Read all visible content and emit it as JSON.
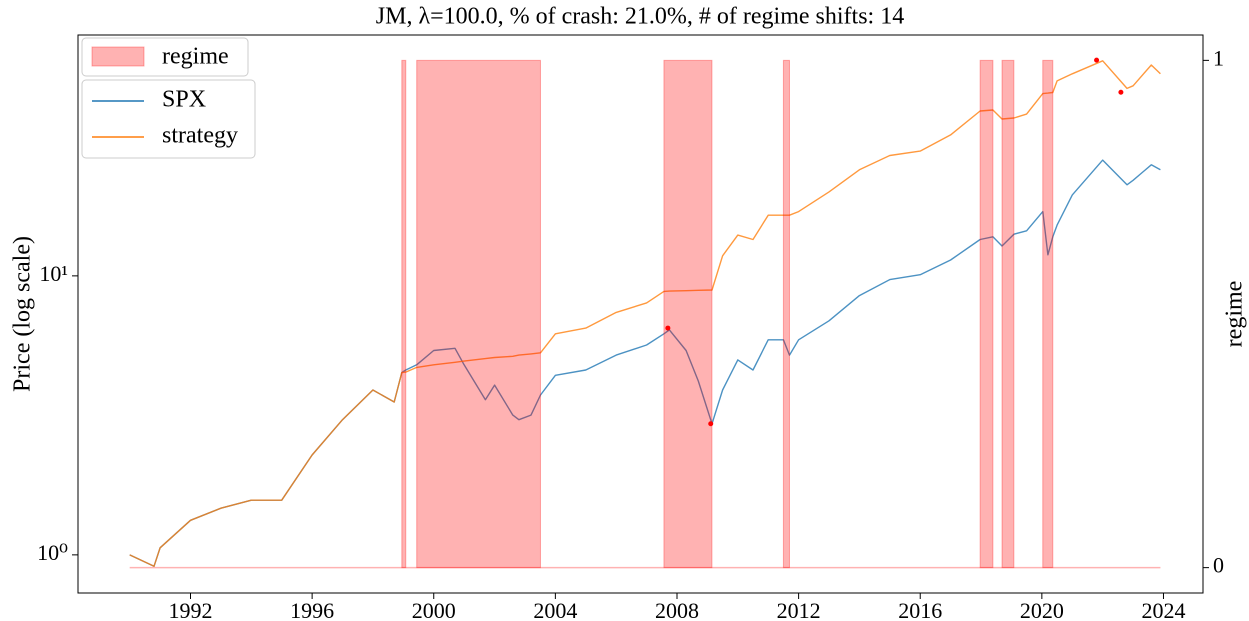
{
  "chart_data": {
    "type": "line",
    "title": "JM, λ=100.0, % of crash: 21.0%, # of regime shifts: 14",
    "ylabel": "Price (log scale)",
    "y2label": "regime",
    "log_y": true,
    "xlim": [
      1988.3,
      2025.3
    ],
    "xticks": [
      1992,
      1996,
      2000,
      2004,
      2008,
      2012,
      2016,
      2020,
      2024
    ],
    "ylim": [
      0.73,
      73
    ],
    "yticks": [
      {
        "value": 1,
        "label": "10⁰"
      },
      {
        "value": 10,
        "label": "10¹"
      }
    ],
    "y2lim": [
      -0.05,
      1.05
    ],
    "y2ticks": [
      0,
      1
    ],
    "x": [
      1990.0,
      1990.8,
      1991.0,
      1992,
      1993,
      1994,
      1995,
      1996,
      1997,
      1998,
      1998.7,
      1998.95,
      1999.08,
      1999.44,
      2000,
      2000.7,
      2001.0,
      2001.7,
      2002.0,
      2002.6,
      2002.8,
      2003.2,
      2003.51,
      2004,
      2005,
      2006,
      2007,
      2007.57,
      2007.75,
      2008.3,
      2008.7,
      2009.15,
      2009.5,
      2010,
      2010.5,
      2011,
      2011.5,
      2011.7,
      2012,
      2013,
      2014,
      2015,
      2016,
      2017,
      2017.97,
      2018.39,
      2018.69,
      2019.08,
      2019.5,
      2020.03,
      2020.2,
      2020.36,
      2020.5,
      2021,
      2022.0,
      2022.8,
      2023,
      2023.6,
      2023.9
    ],
    "series": [
      {
        "name": "SPX",
        "color": "#1f77b4",
        "values": [
          1.0,
          0.91,
          1.06,
          1.33,
          1.47,
          1.57,
          1.57,
          2.28,
          3.05,
          3.9,
          3.53,
          4.5,
          4.6,
          4.8,
          5.4,
          5.5,
          4.8,
          3.6,
          4.06,
          3.17,
          3.05,
          3.17,
          3.74,
          4.4,
          4.6,
          5.2,
          5.65,
          6.2,
          6.4,
          5.4,
          4.2,
          2.95,
          3.9,
          5.0,
          4.6,
          5.9,
          5.9,
          5.2,
          5.9,
          6.9,
          8.5,
          9.7,
          10.1,
          11.4,
          13.5,
          13.8,
          12.8,
          14.1,
          14.5,
          17.0,
          11.9,
          13.8,
          15.2,
          19.5,
          26,
          21.2,
          22.0,
          25,
          24
        ]
      },
      {
        "name": "strategy",
        "color": "#ff7f0e",
        "values": [
          1.0,
          0.91,
          1.06,
          1.33,
          1.47,
          1.57,
          1.57,
          2.28,
          3.05,
          3.9,
          3.53,
          4.5,
          4.52,
          4.7,
          4.8,
          4.9,
          4.95,
          5.05,
          5.1,
          5.15,
          5.2,
          5.25,
          5.3,
          6.2,
          6.5,
          7.4,
          8.0,
          8.8,
          8.82,
          8.85,
          8.88,
          8.9,
          11.8,
          14,
          13.5,
          16.5,
          16.5,
          16.5,
          17,
          20,
          24,
          27,
          28,
          32,
          39,
          39.3,
          36.5,
          36.8,
          38,
          45,
          45.2,
          45.4,
          50,
          53,
          59,
          47,
          48,
          57,
          53
        ]
      }
    ],
    "regime": {
      "name": "regime",
      "color": "#ff0000",
      "alpha": 0.3,
      "axis": "y2",
      "x": [
        1990.0,
        1998.95,
        1999.08,
        1999.44,
        2003.51,
        2007.57,
        2009.15,
        2011.5,
        2011.7,
        2017.97,
        2018.39,
        2018.69,
        2019.08,
        2020.03,
        2020.36,
        2023.9
      ],
      "values": [
        0,
        1,
        0,
        1,
        0,
        1,
        0,
        1,
        0,
        1,
        0,
        1,
        0,
        1,
        0,
        0
      ]
    },
    "markers": {
      "color": "#ff0000",
      "x": [
        2007.7,
        2009.11,
        2021.8,
        2022.6
      ],
      "values": [
        6.5,
        2.95,
        59.3,
        45.5
      ]
    }
  }
}
